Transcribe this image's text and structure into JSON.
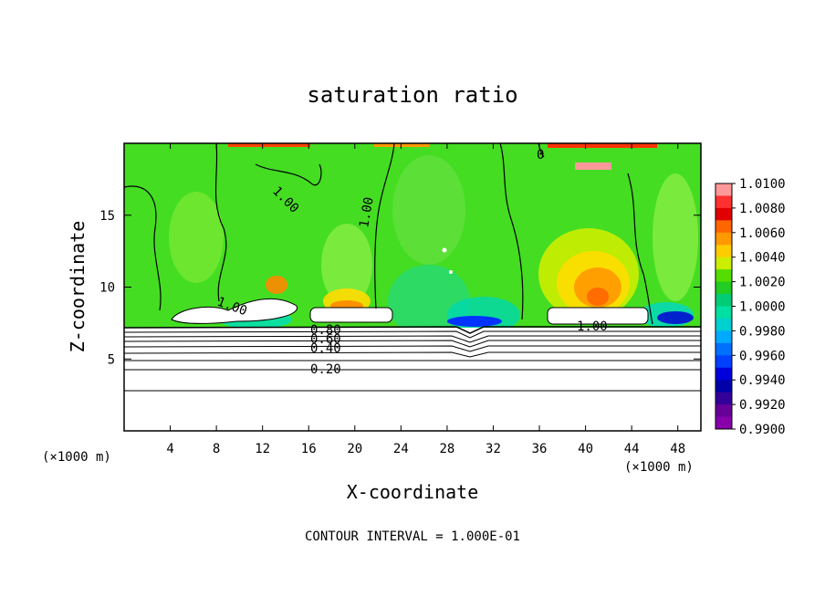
{
  "chart_data": {
    "type": "heatmap",
    "title": "saturation ratio",
    "xlabel": "X-coordinate",
    "ylabel": "Z-coordinate",
    "x_unit_label": "(×1000 m)",
    "x_unit_label_right": "(×1000 m)",
    "xlim": [
      0,
      50
    ],
    "ylim": [
      0,
      20
    ],
    "xticks": [
      4,
      8,
      12,
      16,
      20,
      24,
      28,
      32,
      36,
      40,
      44,
      48
    ],
    "yticks": [
      5,
      10,
      15
    ],
    "colorbar": {
      "levels": [
        "1.0100",
        "1.0080",
        "1.0060",
        "1.0040",
        "1.0020",
        "1.0000",
        "0.9980",
        "0.9960",
        "0.9940",
        "0.9920",
        "0.9900"
      ],
      "colors": [
        "#ff9999",
        "#ff3030",
        "#e00000",
        "#ff6600",
        "#ff9900",
        "#ffcc00",
        "#ccee00",
        "#55dd00",
        "#22cc22",
        "#00cc77",
        "#00e0a0",
        "#00d0d0",
        "#00aaff",
        "#0070ff",
        "#0040ff",
        "#0000dd",
        "#0000aa",
        "#330099",
        "#660099",
        "#8800aa"
      ]
    },
    "contour_labels": [
      "1.00",
      "1.00",
      "1.00",
      "1.00",
      "0.80",
      "0.60",
      "0.40",
      "0.20",
      "0"
    ],
    "contour_interval": "CONTOUR INTERVAL = 1.000E-01",
    "field_colors": {
      "background": "#44dd22",
      "light_green": "#88ee44",
      "cyan": "#00e0b0",
      "yellow": "#ffdd00",
      "orange": "#ff8800",
      "red": "#ff2200",
      "blue": "#0033ff"
    }
  }
}
